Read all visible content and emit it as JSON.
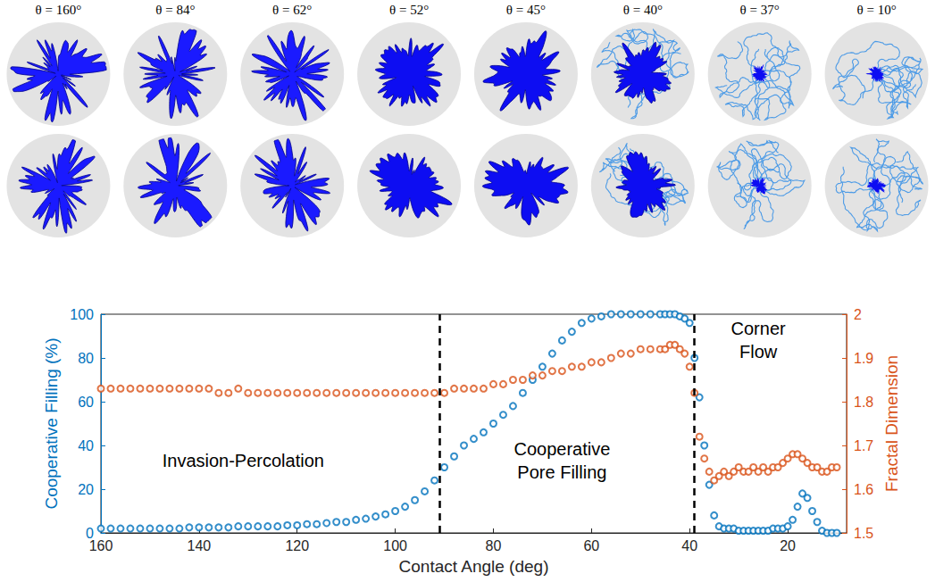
{
  "chart_data": {
    "type": "scatter",
    "xlabel": "Contact Angle (deg)",
    "ylabel": "Cooperative Filling (%)",
    "y2label": "Fractal Dimension",
    "x": [
      160,
      158,
      156,
      154,
      152,
      150,
      148,
      146,
      144,
      142,
      140,
      138,
      136,
      134,
      132,
      130,
      128,
      126,
      124,
      122,
      120,
      118,
      116,
      114,
      112,
      110,
      108,
      106,
      104,
      102,
      100,
      98,
      96,
      94,
      92,
      90,
      88,
      86,
      84,
      82,
      80,
      78,
      76,
      74,
      72,
      70,
      68,
      66,
      64,
      62,
      60,
      58,
      56,
      54,
      52,
      50,
      48,
      46,
      45,
      44,
      43,
      42,
      41,
      40,
      39,
      38,
      37,
      36,
      35,
      34,
      33,
      32,
      31,
      30,
      29,
      28,
      27,
      26,
      25,
      24,
      23,
      22,
      21,
      20,
      19,
      18,
      17,
      16,
      15,
      14,
      13,
      12,
      11,
      10
    ],
    "series": [
      {
        "axis": "y",
        "color": "#0072BD",
        "marker": "circle-open",
        "values": [
          2,
          2,
          2,
          2,
          2,
          2,
          2,
          2,
          2,
          2.5,
          2.5,
          2.5,
          2.5,
          2.5,
          3,
          3,
          3,
          3,
          3,
          3.5,
          3.5,
          4,
          4,
          4.5,
          5,
          5,
          6,
          6.5,
          7.5,
          8.5,
          10,
          12,
          15,
          19,
          24,
          30,
          35,
          40,
          43,
          46,
          50,
          54,
          58,
          64,
          70,
          76,
          82,
          88,
          92,
          96,
          98,
          99,
          100,
          100,
          100,
          100,
          100,
          100,
          100,
          100,
          100,
          99,
          98,
          96,
          80,
          62,
          40,
          22,
          8,
          3,
          2,
          2,
          2,
          1,
          1,
          1,
          1,
          1,
          1,
          1,
          2,
          2,
          2,
          3,
          6,
          12,
          18,
          16,
          10,
          5,
          1,
          0,
          0,
          0
        ]
      },
      {
        "axis": "y2",
        "color": "#D95319",
        "marker": "circle-open",
        "values": [
          1.83,
          1.83,
          1.83,
          1.83,
          1.83,
          1.83,
          1.83,
          1.83,
          1.83,
          1.83,
          1.83,
          1.83,
          1.82,
          1.82,
          1.83,
          1.82,
          1.82,
          1.82,
          1.82,
          1.82,
          1.82,
          1.82,
          1.82,
          1.82,
          1.82,
          1.82,
          1.82,
          1.82,
          1.82,
          1.82,
          1.82,
          1.82,
          1.82,
          1.82,
          1.82,
          1.82,
          1.83,
          1.83,
          1.83,
          1.83,
          1.84,
          1.84,
          1.85,
          1.85,
          1.86,
          1.86,
          1.87,
          1.87,
          1.88,
          1.88,
          1.89,
          1.89,
          1.9,
          1.91,
          1.91,
          1.92,
          1.92,
          1.92,
          1.92,
          1.93,
          1.93,
          1.92,
          1.91,
          1.88,
          1.82,
          1.72,
          1.67,
          1.64,
          1.62,
          1.63,
          1.64,
          1.63,
          1.64,
          1.65,
          1.64,
          1.64,
          1.65,
          1.64,
          1.65,
          1.64,
          1.65,
          1.65,
          1.66,
          1.67,
          1.68,
          1.68,
          1.67,
          1.66,
          1.65,
          1.65,
          1.64,
          1.64,
          1.65,
          1.65
        ]
      }
    ],
    "xlim": [
      160,
      8
    ],
    "xticks": [
      160,
      140,
      120,
      100,
      80,
      60,
      40,
      20
    ],
    "ylim": [
      0,
      100
    ],
    "yticks": [
      0,
      20,
      40,
      60,
      80,
      100
    ],
    "y2lim": [
      1.5,
      2
    ],
    "y2ticks": [
      1.5,
      1.6,
      1.7,
      1.8,
      1.9,
      2
    ],
    "regime_boundaries": [
      91,
      39
    ],
    "annotations": [
      [
        "Invasion-Percolation"
      ],
      [
        "Cooperative",
        "Pore Filling"
      ],
      [
        "Corner",
        "Flow"
      ]
    ],
    "grid": false
  },
  "panels": {
    "labels": [
      "θ = 160°",
      "θ = 84°",
      "θ = 62°",
      "θ = 52°",
      "θ = 45°",
      "θ = 40°",
      "θ = 37°",
      "θ = 10°"
    ]
  }
}
